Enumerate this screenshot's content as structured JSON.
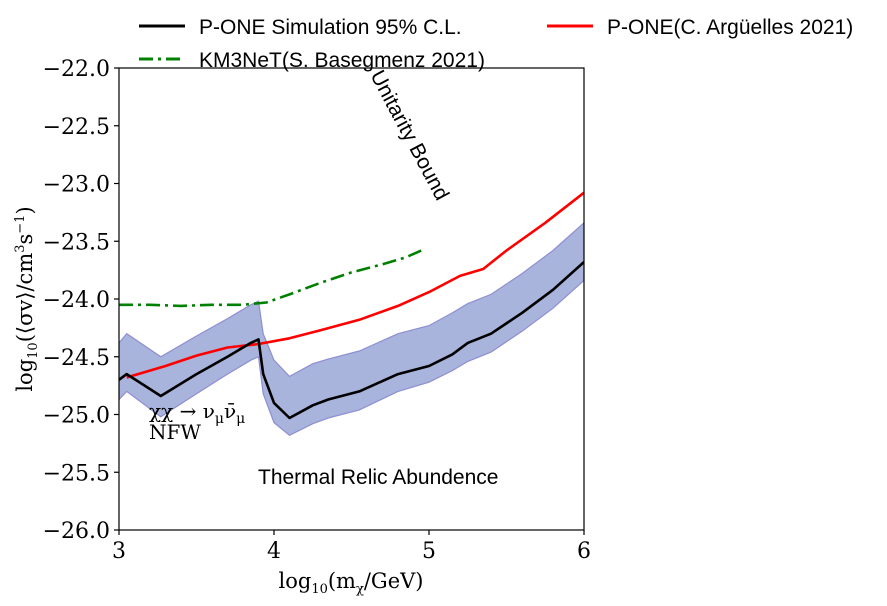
{
  "chart_data": {
    "type": "line",
    "xlabel": "log₁₀(m_χ/GeV)",
    "ylabel": "log₁₀(⟨σv⟩/cm³s⁻¹)",
    "xlim": [
      3,
      6
    ],
    "ylim": [
      -26.0,
      -22.0
    ],
    "xticks": [
      "3",
      "4",
      "5",
      "6"
    ],
    "yticks": [
      "−22.0",
      "−22.5",
      "−23.0",
      "−23.5",
      "−24.0",
      "−24.5",
      "−25.0",
      "−25.5",
      "−26.0"
    ],
    "grid": false,
    "legend_position": "top",
    "colors": {
      "sim": "#000000",
      "km3net": "#008000",
      "pone": "#ff0000",
      "band_fill": "#a8b4dc",
      "band_edge": "#8e8ed2"
    },
    "series": [
      {
        "name": "P-ONE Simulation 95% C.L.",
        "style": "solid",
        "color": "#000000",
        "x": [
          3.0,
          3.05,
          3.27,
          3.5,
          3.7,
          3.85,
          3.9,
          3.93,
          4.0,
          4.1,
          4.25,
          4.35,
          4.55,
          4.8,
          5.0,
          5.15,
          5.25,
          5.4,
          5.6,
          5.8,
          6.0
        ],
        "y": [
          -24.7,
          -24.65,
          -24.84,
          -24.65,
          -24.5,
          -24.38,
          -24.35,
          -24.65,
          -24.9,
          -25.03,
          -24.92,
          -24.87,
          -24.8,
          -24.65,
          -24.58,
          -24.48,
          -24.38,
          -24.3,
          -24.12,
          -23.92,
          -23.68
        ]
      },
      {
        "name": "KM3NeT(S. Basegmenz 2021)",
        "style": "dashdot",
        "color": "#008000",
        "x": [
          3.0,
          3.2,
          3.4,
          3.6,
          3.8,
          3.95,
          4.1,
          4.3,
          4.5,
          4.7,
          4.85,
          4.95
        ],
        "y": [
          -24.05,
          -24.05,
          -24.06,
          -24.05,
          -24.05,
          -24.03,
          -23.96,
          -23.86,
          -23.77,
          -23.7,
          -23.64,
          -23.58
        ]
      },
      {
        "name": "P-ONE(C. Argüelles 2021)",
        "style": "solid",
        "color": "#ff0000",
        "x": [
          3.05,
          3.3,
          3.5,
          3.7,
          3.9,
          4.1,
          4.3,
          4.55,
          4.8,
          5.0,
          5.2,
          5.35,
          5.5,
          5.75,
          6.0
        ],
        "y": [
          -24.68,
          -24.58,
          -24.49,
          -24.42,
          -24.39,
          -24.34,
          -24.27,
          -24.18,
          -24.06,
          -23.94,
          -23.8,
          -23.74,
          -23.58,
          -23.34,
          -23.08
        ]
      }
    ],
    "band": {
      "x": [
        3.0,
        3.05,
        3.27,
        3.5,
        3.7,
        3.85,
        3.9,
        3.93,
        4.0,
        4.1,
        4.25,
        4.35,
        4.55,
        4.8,
        5.0,
        5.15,
        5.25,
        5.4,
        5.6,
        5.8,
        6.0
      ],
      "upper": [
        -24.38,
        -24.3,
        -24.5,
        -24.32,
        -24.17,
        -24.05,
        -24.02,
        -24.3,
        -24.53,
        -24.67,
        -24.56,
        -24.52,
        -24.45,
        -24.3,
        -24.23,
        -24.12,
        -24.04,
        -23.96,
        -23.78,
        -23.58,
        -23.34
      ],
      "lower": [
        -24.87,
        -24.8,
        -25.02,
        -24.82,
        -24.65,
        -24.53,
        -24.5,
        -24.82,
        -25.07,
        -25.18,
        -25.08,
        -25.03,
        -24.96,
        -24.8,
        -24.72,
        -24.62,
        -24.54,
        -24.46,
        -24.28,
        -24.08,
        -23.84
      ]
    },
    "annotations": {
      "unitarity": "Unitarity Bound",
      "thermal": "Thermal Relic Abundence",
      "channel": "χχ → ν_μν̄_μ",
      "profile": "NFW"
    }
  }
}
